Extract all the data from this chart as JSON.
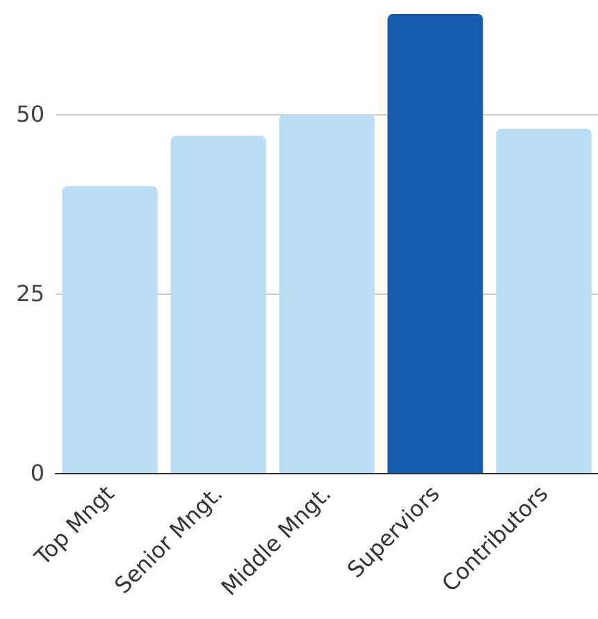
{
  "chart_data": {
    "type": "bar",
    "categories": [
      "Top Mngt",
      "Senior Mngt.",
      "Middle Mngt.",
      "Superviors",
      "Contributors"
    ],
    "values": [
      40,
      47,
      50,
      64,
      48
    ],
    "colors": [
      "#bbdcf5",
      "#bbdcf5",
      "#bbdcf5",
      "#155bb0",
      "#bbdcf5"
    ],
    "ylim": [
      0,
      64
    ],
    "yticks": [
      0,
      25,
      50
    ],
    "grid": "y"
  }
}
